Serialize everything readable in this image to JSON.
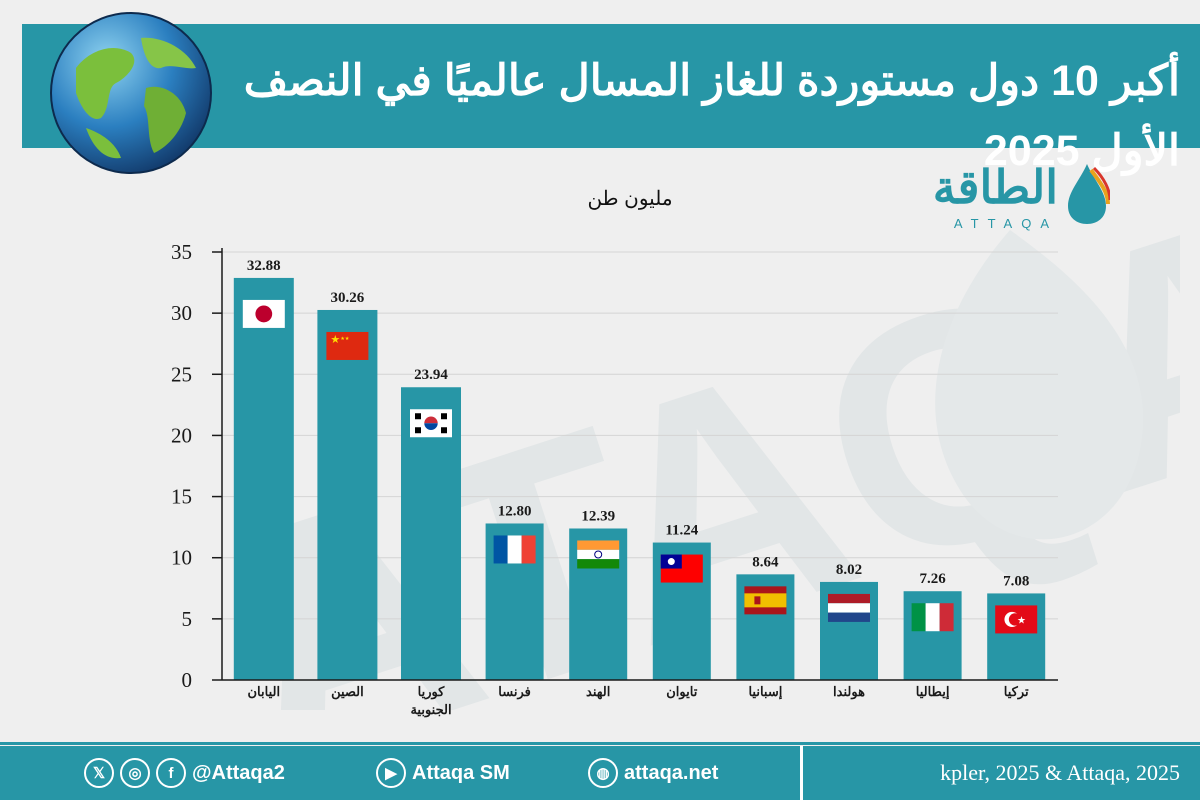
{
  "header": {
    "title": "أكبر 10 دول مستوردة للغاز المسال عالميًا في النصف الأول 2025"
  },
  "logo": {
    "arabic": "الطاقة",
    "latin": "ATTAQA"
  },
  "colors": {
    "brand": "#2796a6",
    "bar": "#2796a6",
    "background": "#efefef"
  },
  "chart_data": {
    "type": "bar",
    "ylabel": "مليون طن",
    "ylim": [
      0,
      35
    ],
    "yticks": [
      0,
      5,
      10,
      15,
      20,
      25,
      30,
      35
    ],
    "grid": true,
    "categories": [
      "اليابان",
      "الصين",
      "كوريا الجنوبية",
      "فرنسا",
      "الهند",
      "تايوان",
      "إسبانيا",
      "هولندا",
      "إيطاليا",
      "تركيا"
    ],
    "values": [
      32.88,
      30.26,
      23.94,
      12.8,
      12.39,
      11.24,
      8.64,
      8.02,
      7.26,
      7.08
    ],
    "value_labels": [
      "32.88",
      "30.26",
      "23.94",
      "12.80",
      "12.39",
      "11.24",
      "8.64",
      "8.02",
      "7.26",
      "7.08"
    ],
    "flags": [
      "japan",
      "china",
      "south-korea",
      "france",
      "india",
      "taiwan",
      "spain",
      "netherlands",
      "italy",
      "turkey"
    ]
  },
  "footer": {
    "handle": "@Attaqa2",
    "youtube": "Attaqa SM",
    "website": "attaqa.net",
    "source": "kpler, 2025 & Attaqa, 2025",
    "icons": [
      "x-icon",
      "instagram-icon",
      "facebook-icon",
      "youtube-icon",
      "globe-icon"
    ]
  }
}
